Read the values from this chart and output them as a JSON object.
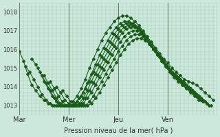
{
  "xlabel": "Pression niveau de la mer( hPa )",
  "bg_color": "#cce8dc",
  "grid_color": "#a0c8b4",
  "line_color": "#1a5c1a",
  "marker": "D",
  "marker_size": 2.0,
  "line_width": 0.8,
  "xlim": [
    0,
    96
  ],
  "ylim": [
    1012.5,
    1018.5
  ],
  "yticks": [
    1013,
    1014,
    1015,
    1016,
    1017,
    1018
  ],
  "xtick_positions": [
    0,
    24,
    48,
    72,
    96
  ],
  "xtick_labels": [
    "Mar",
    "Mer",
    "Jeu",
    "Ven",
    ""
  ],
  "vline_positions": [
    0,
    24,
    48,
    72
  ],
  "series": [
    {
      "x_start": 0,
      "points": [
        1015.9,
        1015.4,
        1014.7,
        1014.1,
        1013.8,
        1013.5,
        1013.3,
        1013.1,
        1013.0,
        1013.0,
        1013.0,
        1013.0,
        1013.0,
        1013.2,
        1013.5,
        1013.9,
        1014.4,
        1015.0,
        1015.5,
        1016.0,
        1016.5,
        1016.9,
        1017.2,
        1017.5,
        1017.7,
        1017.8,
        1017.8,
        1017.7,
        1017.5,
        1017.3,
        1017.0,
        1016.7,
        1016.4,
        1016.1,
        1015.8,
        1015.5,
        1015.3,
        1015.0,
        1014.8,
        1014.6,
        1014.4,
        1014.3,
        1014.2,
        1014.1,
        1013.9,
        1013.7,
        1013.5,
        1013.3
      ]
    },
    {
      "x_start": 3,
      "points": [
        1015.1,
        1014.8,
        1014.4,
        1014.0,
        1013.6,
        1013.3,
        1013.1,
        1013.0,
        1013.0,
        1013.0,
        1013.0,
        1013.0,
        1013.1,
        1013.4,
        1013.7,
        1014.2,
        1014.7,
        1015.2,
        1015.7,
        1016.1,
        1016.5,
        1016.9,
        1017.2,
        1017.4,
        1017.5,
        1017.5,
        1017.4,
        1017.2,
        1016.9,
        1016.6,
        1016.3,
        1016.0,
        1015.7,
        1015.4,
        1015.1,
        1014.9,
        1014.7,
        1014.5,
        1014.3,
        1014.1,
        1013.9,
        1013.7,
        1013.5,
        1013.3,
        1013.1,
        1013.0
      ]
    },
    {
      "x_start": 6,
      "points": [
        1015.5,
        1015.2,
        1014.8,
        1014.3,
        1013.9,
        1013.5,
        1013.2,
        1013.0,
        1013.0,
        1013.0,
        1013.0,
        1013.2,
        1013.5,
        1013.9,
        1014.3,
        1014.8,
        1015.2,
        1015.6,
        1016.0,
        1016.4,
        1016.8,
        1017.1,
        1017.3,
        1017.4,
        1017.4,
        1017.3,
        1017.1,
        1016.8,
        1016.5,
        1016.2,
        1015.9,
        1015.6,
        1015.3,
        1015.0,
        1014.8,
        1014.6,
        1014.4,
        1014.2,
        1014.0,
        1013.8,
        1013.6,
        1013.4,
        1013.2,
        1013.0
      ]
    },
    {
      "x_start": 9,
      "points": [
        1015.0,
        1014.6,
        1014.2,
        1013.8,
        1013.4,
        1013.1,
        1013.0,
        1013.0,
        1013.0,
        1013.0,
        1013.1,
        1013.4,
        1013.8,
        1014.3,
        1014.7,
        1015.1,
        1015.5,
        1015.9,
        1016.3,
        1016.7,
        1017.0,
        1017.2,
        1017.3,
        1017.3,
        1017.2,
        1017.0,
        1016.7,
        1016.4,
        1016.1,
        1015.8,
        1015.5,
        1015.2,
        1014.9,
        1014.7,
        1014.5,
        1014.3,
        1014.1,
        1013.9,
        1013.7,
        1013.5,
        1013.3,
        1013.1
      ]
    },
    {
      "x_start": 12,
      "points": [
        1014.6,
        1014.2,
        1013.8,
        1013.4,
        1013.1,
        1013.0,
        1013.0,
        1013.0,
        1013.0,
        1013.1,
        1013.4,
        1013.8,
        1014.2,
        1014.6,
        1015.0,
        1015.4,
        1015.8,
        1016.2,
        1016.6,
        1016.9,
        1017.1,
        1017.2,
        1017.2,
        1017.1,
        1016.9,
        1016.6,
        1016.3,
        1016.0,
        1015.7,
        1015.4,
        1015.1,
        1014.8,
        1014.6,
        1014.4,
        1014.2,
        1014.0,
        1013.8,
        1013.6,
        1013.4,
        1013.2
      ]
    },
    {
      "x_start": 15,
      "points": [
        1014.3,
        1013.9,
        1013.5,
        1013.2,
        1013.0,
        1013.0,
        1013.0,
        1013.0,
        1013.1,
        1013.4,
        1013.7,
        1014.1,
        1014.5,
        1014.9,
        1015.3,
        1015.7,
        1016.1,
        1016.4,
        1016.7,
        1016.9,
        1017.0,
        1017.0,
        1016.9,
        1016.7,
        1016.4,
        1016.1,
        1015.8,
        1015.5,
        1015.2,
        1014.9,
        1014.6,
        1014.4,
        1014.2,
        1014.0,
        1013.8,
        1013.6,
        1013.4,
        1013.2
      ]
    },
    {
      "x_start": 18,
      "points": [
        1014.0,
        1013.7,
        1013.3,
        1013.1,
        1013.0,
        1013.0,
        1013.0,
        1013.0,
        1013.2,
        1013.5,
        1013.9,
        1014.3,
        1014.7,
        1015.1,
        1015.5,
        1015.9,
        1016.2,
        1016.5,
        1016.7,
        1016.8,
        1016.8,
        1016.7,
        1016.5,
        1016.2,
        1015.9,
        1015.6,
        1015.3,
        1015.0,
        1014.7,
        1014.5,
        1014.3,
        1014.1,
        1013.9,
        1013.7,
        1013.5,
        1013.3
      ]
    },
    {
      "x_start": 21,
      "points": [
        1013.8,
        1013.5,
        1013.2,
        1013.0,
        1013.0,
        1013.0,
        1013.0,
        1013.1,
        1013.4,
        1013.7,
        1014.1,
        1014.5,
        1014.9,
        1015.3,
        1015.7,
        1016.0,
        1016.3,
        1016.5,
        1016.6,
        1016.6,
        1016.5,
        1016.3,
        1016.0,
        1015.7,
        1015.4,
        1015.1,
        1014.8,
        1014.5,
        1014.3,
        1014.1,
        1013.9,
        1013.7,
        1013.5,
        1013.3
      ]
    }
  ]
}
